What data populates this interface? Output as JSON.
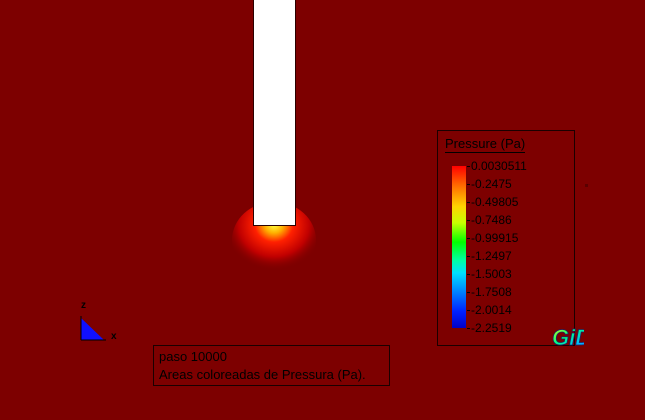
{
  "colors": {
    "background": "#7d0000",
    "body": "#ffffff",
    "legend_top": "#ff0000",
    "legend_bottom": "#0000c8"
  },
  "legend": {
    "title": "Pressure (Pa)",
    "labels": [
      "0.0030511",
      "-0.2475",
      "-0.49805",
      "-0.7486",
      "-0.99915",
      "-1.2497",
      "-1.5003",
      "-1.7508",
      "-2.0014",
      "-2.2519"
    ]
  },
  "axes": {
    "z_label": "z",
    "x_label": "x"
  },
  "info": {
    "step": "paso 10000",
    "description": "Areas coloreadas de Pressura (Pa)."
  },
  "logo": {
    "text": "GiD",
    "icon": "gid-logo-icon"
  }
}
